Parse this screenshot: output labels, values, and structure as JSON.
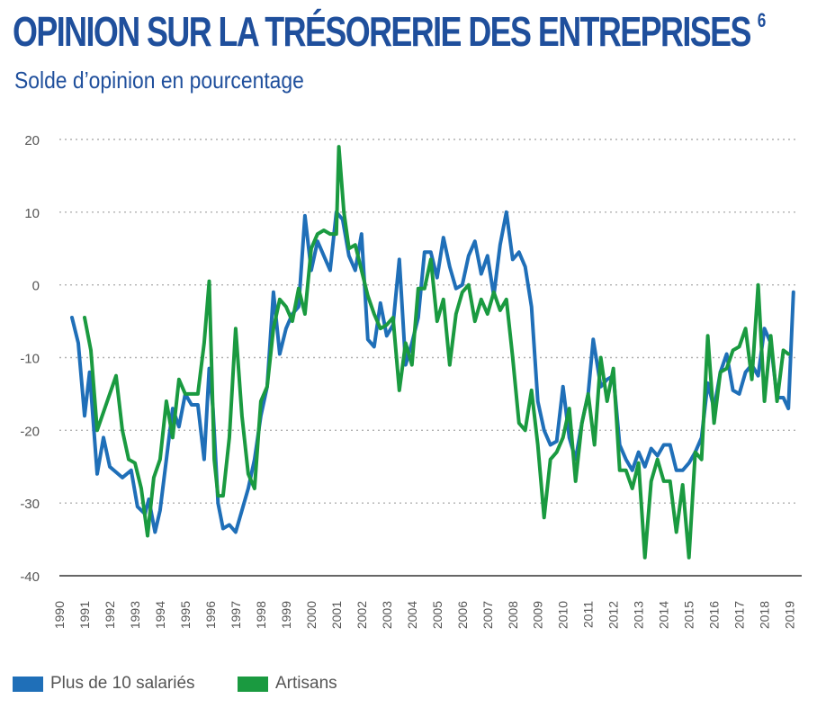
{
  "header": {
    "title": "OPINION SUR LA TRÉSORERIE DES ENTREPRISES",
    "footnote": "6",
    "subtitle": "Solde d’opinion en pourcentage"
  },
  "colors": {
    "title": "#1f4f9c",
    "blue_series": "#1f6fb8",
    "green_series": "#1a9a40",
    "grid": "#b0b0b0",
    "axis": "#666666",
    "tick_text": "#555555"
  },
  "legend": [
    {
      "label": "Plus de 10 salariés",
      "color": "#1f6fb8"
    },
    {
      "label": "Artisans",
      "color": "#1a9a40"
    }
  ],
  "chart_data": {
    "type": "line",
    "title": "OPINION SUR LA TRÉSORERIE DES ENTREPRISES",
    "subtitle": "Solde d’opinion en pourcentage",
    "xlabel": "",
    "ylabel": "",
    "xlim": [
      1990,
      2019.3
    ],
    "ylim": [
      -40,
      20
    ],
    "yticks": [
      20,
      10,
      0,
      -10,
      -20,
      -30,
      -40
    ],
    "xticks": [
      1990,
      1991,
      1992,
      1993,
      1994,
      1995,
      1996,
      1997,
      1998,
      1999,
      2000,
      2001,
      2002,
      2003,
      2004,
      2005,
      2006,
      2007,
      2008,
      2009,
      2010,
      2011,
      2012,
      2013,
      2014,
      2015,
      2016,
      2017,
      2018,
      2019
    ],
    "grid": "horizontal dotted",
    "legend_position": "bottom-left",
    "series": [
      {
        "name": "Plus de 10 salariés",
        "color": "#1f6fb8",
        "points": [
          [
            1990.5,
            -4.5
          ],
          [
            1990.75,
            -8
          ],
          [
            1991.0,
            -18
          ],
          [
            1991.2,
            -12
          ],
          [
            1991.5,
            -26
          ],
          [
            1991.75,
            -21
          ],
          [
            1992.0,
            -25
          ],
          [
            1992.5,
            -26.5
          ],
          [
            1992.85,
            -25.5
          ],
          [
            1993.1,
            -30.5
          ],
          [
            1993.4,
            -31.5
          ],
          [
            1993.55,
            -29.5
          ],
          [
            1993.8,
            -34
          ],
          [
            1994.0,
            -31
          ],
          [
            1994.25,
            -24
          ],
          [
            1994.5,
            -17
          ],
          [
            1994.75,
            -19.5
          ],
          [
            1995.0,
            -15
          ],
          [
            1995.25,
            -16.5
          ],
          [
            1995.5,
            -16.5
          ],
          [
            1995.75,
            -24
          ],
          [
            1995.95,
            -11.5
          ],
          [
            1996.1,
            -17
          ],
          [
            1996.3,
            -30
          ],
          [
            1996.5,
            -33.5
          ],
          [
            1996.75,
            -33
          ],
          [
            1997.0,
            -34
          ],
          [
            1997.25,
            -31
          ],
          [
            1997.5,
            -28
          ],
          [
            1997.75,
            -24
          ],
          [
            1998.0,
            -18
          ],
          [
            1998.25,
            -14
          ],
          [
            1998.5,
            -1
          ],
          [
            1998.75,
            -9.5
          ],
          [
            1999.0,
            -6
          ],
          [
            1999.25,
            -4
          ],
          [
            1999.5,
            -3
          ],
          [
            1999.75,
            9.5
          ],
          [
            2000.0,
            2
          ],
          [
            2000.25,
            6
          ],
          [
            2000.5,
            4
          ],
          [
            2000.75,
            2
          ],
          [
            2001.0,
            10
          ],
          [
            2001.25,
            9
          ],
          [
            2001.5,
            4
          ],
          [
            2001.75,
            2
          ],
          [
            2002.0,
            7
          ],
          [
            2002.25,
            -7.5
          ],
          [
            2002.5,
            -8.5
          ],
          [
            2002.75,
            -2.5
          ],
          [
            2003.0,
            -7
          ],
          [
            2003.25,
            -5.5
          ],
          [
            2003.5,
            3.5
          ],
          [
            2003.75,
            -11
          ],
          [
            2004.0,
            -8
          ],
          [
            2004.25,
            -4.5
          ],
          [
            2004.5,
            4.5
          ],
          [
            2004.75,
            4.5
          ],
          [
            2005.0,
            1
          ],
          [
            2005.25,
            6.5
          ],
          [
            2005.5,
            2.5
          ],
          [
            2005.75,
            -0.5
          ],
          [
            2006.0,
            0
          ],
          [
            2006.25,
            4
          ],
          [
            2006.5,
            6
          ],
          [
            2006.75,
            1.5
          ],
          [
            2007.0,
            4
          ],
          [
            2007.25,
            -1.5
          ],
          [
            2007.5,
            5.5
          ],
          [
            2007.75,
            10
          ],
          [
            2008.0,
            3.5
          ],
          [
            2008.25,
            4.5
          ],
          [
            2008.5,
            2.5
          ],
          [
            2008.75,
            -3
          ],
          [
            2009.0,
            -16
          ],
          [
            2009.25,
            -20
          ],
          [
            2009.5,
            -22
          ],
          [
            2009.75,
            -21.5
          ],
          [
            2010.0,
            -14
          ],
          [
            2010.25,
            -21
          ],
          [
            2010.5,
            -24
          ],
          [
            2010.75,
            -19
          ],
          [
            2011.0,
            -15
          ],
          [
            2011.2,
            -7.5
          ],
          [
            2011.5,
            -14
          ],
          [
            2011.75,
            -13
          ],
          [
            2012.0,
            -12.5
          ],
          [
            2012.25,
            -22
          ],
          [
            2012.5,
            -24
          ],
          [
            2012.75,
            -25.5
          ],
          [
            2013.0,
            -23
          ],
          [
            2013.25,
            -25
          ],
          [
            2013.5,
            -22.5
          ],
          [
            2013.75,
            -23.5
          ],
          [
            2014.0,
            -22
          ],
          [
            2014.25,
            -22
          ],
          [
            2014.5,
            -25.5
          ],
          [
            2014.75,
            -25.5
          ],
          [
            2015.0,
            -24.5
          ],
          [
            2015.25,
            -23
          ],
          [
            2015.5,
            -21
          ],
          [
            2015.75,
            -13.5
          ],
          [
            2016.0,
            -17
          ],
          [
            2016.25,
            -12
          ],
          [
            2016.5,
            -9.5
          ],
          [
            2016.75,
            -14.5
          ],
          [
            2017.0,
            -15
          ],
          [
            2017.25,
            -12
          ],
          [
            2017.5,
            -11
          ],
          [
            2017.75,
            -12.5
          ],
          [
            2018.0,
            -6
          ],
          [
            2018.25,
            -8
          ],
          [
            2018.5,
            -15.5
          ],
          [
            2018.75,
            -15.5
          ],
          [
            2018.95,
            -17
          ],
          [
            2019.15,
            -1
          ]
        ]
      },
      {
        "name": "Artisans",
        "color": "#1a9a40",
        "points": [
          [
            1991.0,
            -4.5
          ],
          [
            1991.25,
            -9
          ],
          [
            1991.5,
            -20
          ],
          [
            1991.75,
            -17.5
          ],
          [
            1992.0,
            -15
          ],
          [
            1992.25,
            -12.5
          ],
          [
            1992.5,
            -20
          ],
          [
            1992.75,
            -24
          ],
          [
            1993.0,
            -24.5
          ],
          [
            1993.25,
            -28
          ],
          [
            1993.5,
            -34.5
          ],
          [
            1993.75,
            -26.5
          ],
          [
            1994.0,
            -24
          ],
          [
            1994.25,
            -16
          ],
          [
            1994.5,
            -21
          ],
          [
            1994.75,
            -13
          ],
          [
            1995.0,
            -15
          ],
          [
            1995.25,
            -15
          ],
          [
            1995.5,
            -15
          ],
          [
            1995.75,
            -8
          ],
          [
            1995.95,
            0.5
          ],
          [
            1996.15,
            -24
          ],
          [
            1996.3,
            -29
          ],
          [
            1996.5,
            -29
          ],
          [
            1996.75,
            -21
          ],
          [
            1997.0,
            -6
          ],
          [
            1997.25,
            -18
          ],
          [
            1997.5,
            -26
          ],
          [
            1997.75,
            -28
          ],
          [
            1998.0,
            -16
          ],
          [
            1998.25,
            -14
          ],
          [
            1998.5,
            -6
          ],
          [
            1998.75,
            -2
          ],
          [
            1999.0,
            -3
          ],
          [
            1999.25,
            -5
          ],
          [
            1999.5,
            -0.5
          ],
          [
            1999.75,
            -4
          ],
          [
            2000.0,
            5
          ],
          [
            2000.25,
            7
          ],
          [
            2000.5,
            7.5
          ],
          [
            2000.75,
            7
          ],
          [
            2001.0,
            7
          ],
          [
            2001.1,
            19
          ],
          [
            2001.3,
            10
          ],
          [
            2001.5,
            5
          ],
          [
            2001.75,
            5.5
          ],
          [
            2002.0,
            2
          ],
          [
            2002.25,
            -1.5
          ],
          [
            2002.5,
            -4
          ],
          [
            2002.75,
            -6
          ],
          [
            2003.0,
            -5.5
          ],
          [
            2003.25,
            -4.5
          ],
          [
            2003.5,
            -14.5
          ],
          [
            2003.75,
            -8
          ],
          [
            2004.0,
            -11
          ],
          [
            2004.25,
            -0.5
          ],
          [
            2004.5,
            -0.5
          ],
          [
            2004.75,
            3.5
          ],
          [
            2005.0,
            -5
          ],
          [
            2005.25,
            -2
          ],
          [
            2005.5,
            -11
          ],
          [
            2005.75,
            -4
          ],
          [
            2006.0,
            -1
          ],
          [
            2006.25,
            0
          ],
          [
            2006.5,
            -5
          ],
          [
            2006.75,
            -2
          ],
          [
            2007.0,
            -4
          ],
          [
            2007.25,
            -1
          ],
          [
            2007.5,
            -3.5
          ],
          [
            2007.75,
            -2
          ],
          [
            2008.0,
            -10
          ],
          [
            2008.25,
            -19
          ],
          [
            2008.5,
            -20
          ],
          [
            2008.75,
            -14.5
          ],
          [
            2009.0,
            -22
          ],
          [
            2009.25,
            -32
          ],
          [
            2009.5,
            -24
          ],
          [
            2009.75,
            -23
          ],
          [
            2010.0,
            -21
          ],
          [
            2010.25,
            -17
          ],
          [
            2010.5,
            -27
          ],
          [
            2010.75,
            -19
          ],
          [
            2011.0,
            -15
          ],
          [
            2011.25,
            -22
          ],
          [
            2011.5,
            -10
          ],
          [
            2011.75,
            -16
          ],
          [
            2012.0,
            -11.5
          ],
          [
            2012.25,
            -25.5
          ],
          [
            2012.5,
            -25.5
          ],
          [
            2012.75,
            -28
          ],
          [
            2013.0,
            -24.5
          ],
          [
            2013.25,
            -37.5
          ],
          [
            2013.5,
            -27
          ],
          [
            2013.75,
            -24
          ],
          [
            2014.0,
            -27
          ],
          [
            2014.25,
            -27
          ],
          [
            2014.5,
            -34
          ],
          [
            2014.75,
            -27.5
          ],
          [
            2015.0,
            -37.5
          ],
          [
            2015.25,
            -23
          ],
          [
            2015.5,
            -24
          ],
          [
            2015.75,
            -7
          ],
          [
            2016.0,
            -19
          ],
          [
            2016.25,
            -12
          ],
          [
            2016.5,
            -11.5
          ],
          [
            2016.75,
            -9
          ],
          [
            2017.0,
            -8.5
          ],
          [
            2017.25,
            -6
          ],
          [
            2017.5,
            -13
          ],
          [
            2017.75,
            0
          ],
          [
            2018.0,
            -16
          ],
          [
            2018.25,
            -7
          ],
          [
            2018.5,
            -16
          ],
          [
            2018.75,
            -9
          ],
          [
            2018.95,
            -9.5
          ]
        ]
      }
    ]
  }
}
